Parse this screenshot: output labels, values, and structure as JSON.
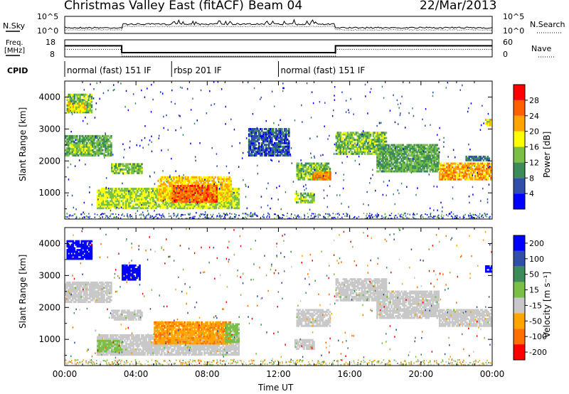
{
  "header": {
    "radar": "Christmas Valley East (fitACF)",
    "beam": "Beam 04",
    "date": "22/Mar/2013"
  },
  "noise_panel": {
    "left_label": "N.Sky",
    "right_label": "N.Search",
    "left_ticks": [
      "10^5",
      "10^0"
    ],
    "right_ticks": [
      "10^5",
      "10^0"
    ]
  },
  "freq_panel": {
    "left_label_line1": "Freq.",
    "left_label_line2": "[MHz]",
    "right_label": "Nave",
    "left_ticks": [
      "18",
      "8"
    ],
    "right_ticks": [
      "60",
      "0"
    ],
    "freq_mhz": [
      {
        "t0": 0,
        "t1": 3.2,
        "v": 14.5
      },
      {
        "t0": 3.2,
        "t1": 15.2,
        "v": 10.5
      },
      {
        "t0": 15.2,
        "t1": 24,
        "v": 14.5
      }
    ]
  },
  "cpid": {
    "label": "CPID",
    "segments": [
      {
        "label": "normal (fast) 151 IF",
        "start_ut": 0,
        "end_ut": 6
      },
      {
        "label": "rbsp 201 IF",
        "start_ut": 6,
        "end_ut": 12
      },
      {
        "label": "normal (fast) 151 IF",
        "start_ut": 12,
        "end_ut": 24
      }
    ]
  },
  "colors": {
    "power": [
      "#0000ff",
      "#2f4fa8",
      "#3c8c5a",
      "#7ac046",
      "#ffff00",
      "#ffa500",
      "#ff6000",
      "#ff0000"
    ],
    "velocity": [
      "#0000ff",
      "#2f4fa8",
      "#3c8c5a",
      "#7ac046",
      "#c8c8c8",
      "#ffa500",
      "#ff7000",
      "#ff0000"
    ]
  },
  "chart_data": [
    {
      "type": "heatmap",
      "name": "power",
      "xlabel": "",
      "ylabel": "Slant Range [km]",
      "xlim_ut": [
        0,
        24
      ],
      "ylim_km": [
        180,
        4500
      ],
      "yticks": [
        1000,
        2000,
        3000,
        4000
      ],
      "colorbar_label": "Power [dB]",
      "colorbar_ticks": [
        "4",
        "8",
        "12",
        "16",
        "20",
        "24",
        "28"
      ],
      "colorbar_range": [
        0,
        32
      ],
      "regions": [
        {
          "t0": 0.1,
          "t1": 1.5,
          "r0": 3500,
          "r1": 4100,
          "level": 14
        },
        {
          "t0": 0.2,
          "t1": 1.1,
          "r0": 3550,
          "r1": 3800,
          "level": 18
        },
        {
          "t0": 0.0,
          "t1": 2.6,
          "r0": 2150,
          "r1": 2800,
          "level": 12
        },
        {
          "t0": 0.3,
          "t1": 1.5,
          "r0": 2250,
          "r1": 2500,
          "level": 16
        },
        {
          "t0": 2.6,
          "t1": 4.3,
          "r0": 1600,
          "r1": 1900,
          "level": 14
        },
        {
          "t0": 1.8,
          "t1": 9.8,
          "r0": 500,
          "r1": 1150,
          "level": 16
        },
        {
          "t0": 5.2,
          "t1": 9.3,
          "r0": 750,
          "r1": 1500,
          "level": 20
        },
        {
          "t0": 6.0,
          "t1": 8.5,
          "r0": 700,
          "r1": 1250,
          "level": 26
        },
        {
          "t0": 10.3,
          "t1": 12.6,
          "r0": 2150,
          "r1": 3000,
          "level": 6
        },
        {
          "t0": 13.0,
          "t1": 14.9,
          "r0": 1400,
          "r1": 1900,
          "level": 14
        },
        {
          "t0": 13.9,
          "t1": 14.9,
          "r0": 1400,
          "r1": 1650,
          "level": 24
        },
        {
          "t0": 12.9,
          "t1": 14.0,
          "r0": 680,
          "r1": 1000,
          "level": 14
        },
        {
          "t0": 15.2,
          "t1": 18.0,
          "r0": 2200,
          "r1": 2900,
          "level": 14
        },
        {
          "t0": 17.5,
          "t1": 21.0,
          "r0": 1650,
          "r1": 2500,
          "level": 12
        },
        {
          "t0": 21.0,
          "t1": 24.0,
          "r0": 1400,
          "r1": 1900,
          "level": 22
        },
        {
          "t0": 22.5,
          "t1": 23.8,
          "r0": 2000,
          "r1": 2150,
          "level": 8
        },
        {
          "t0": 23.6,
          "t1": 24.0,
          "r0": 3100,
          "r1": 3300,
          "level": 18
        }
      ]
    },
    {
      "type": "heatmap",
      "name": "velocity",
      "xlabel": "Time UT",
      "ylabel": "Slant Range [km]",
      "xlim_ut": [
        0,
        24
      ],
      "ylim_km": [
        180,
        4500
      ],
      "yticks": [
        1000,
        2000,
        3000,
        4000
      ],
      "xticks": [
        "00:00",
        "04:00",
        "08:00",
        "12:00",
        "16:00",
        "20:00",
        "00:00"
      ],
      "colorbar_label": "Velocity [m s⁻¹]",
      "colorbar_ticks": [
        "200",
        "100",
        "50",
        "15",
        "-15",
        "-50",
        "-100",
        "-200"
      ],
      "regions": [
        {
          "t0": 0.1,
          "t1": 1.5,
          "r0": 3500,
          "r1": 4100,
          "v": 250
        },
        {
          "t0": 0.0,
          "t1": 2.6,
          "r0": 2150,
          "r1": 2800,
          "v": 0
        },
        {
          "t0": 2.6,
          "t1": 4.3,
          "r0": 1600,
          "r1": 1900,
          "v": 0
        },
        {
          "t0": 1.8,
          "t1": 9.8,
          "r0": 500,
          "r1": 1150,
          "v": 0
        },
        {
          "t0": 5.0,
          "t1": 9.3,
          "r0": 850,
          "r1": 1550,
          "v": -40
        },
        {
          "t0": 1.8,
          "t1": 3.2,
          "r0": 600,
          "r1": 950,
          "v": 30
        },
        {
          "t0": 9.0,
          "t1": 9.8,
          "r0": 900,
          "r1": 1500,
          "v": 30
        },
        {
          "t0": 3.2,
          "t1": 4.2,
          "r0": 2850,
          "r1": 3300,
          "v": 250
        },
        {
          "t0": 12.9,
          "t1": 14.0,
          "r0": 680,
          "r1": 1000,
          "v": 0
        },
        {
          "t0": 13.0,
          "t1": 14.9,
          "r0": 1400,
          "r1": 1900,
          "v": 0
        },
        {
          "t0": 15.2,
          "t1": 18.0,
          "r0": 2200,
          "r1": 2900,
          "v": 0
        },
        {
          "t0": 17.5,
          "t1": 21.0,
          "r0": 1650,
          "r1": 2500,
          "v": 0
        },
        {
          "t0": 21.0,
          "t1": 24.0,
          "r0": 1400,
          "r1": 1900,
          "v": 0
        },
        {
          "t0": 23.6,
          "t1": 24.0,
          "r0": 3100,
          "r1": 3300,
          "v": 250
        }
      ]
    }
  ]
}
